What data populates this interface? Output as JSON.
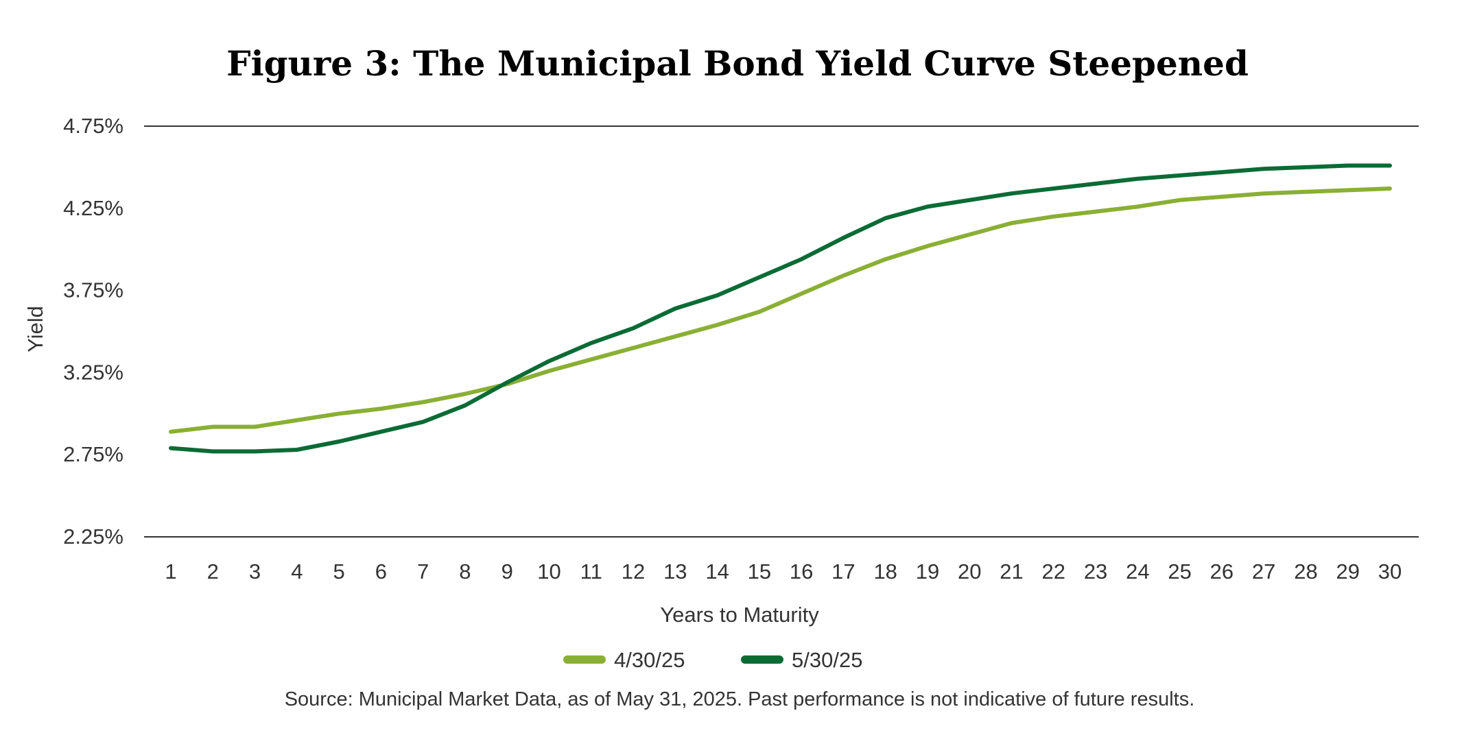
{
  "chart_data": {
    "type": "line",
    "title": "Figure 3: The Municipal Bond Yield Curve Steepened",
    "xlabel": "Years to Maturity",
    "ylabel": "Yield",
    "x": [
      1,
      2,
      3,
      4,
      5,
      6,
      7,
      8,
      9,
      10,
      11,
      12,
      13,
      14,
      15,
      16,
      17,
      18,
      19,
      20,
      21,
      22,
      23,
      24,
      25,
      26,
      27,
      28,
      29,
      30
    ],
    "x_tick_labels": [
      "1",
      "2",
      "3",
      "4",
      "5",
      "6",
      "7",
      "8",
      "9",
      "10",
      "11",
      "12",
      "13",
      "14",
      "15",
      "16",
      "17",
      "18",
      "19",
      "20",
      "21",
      "22",
      "23",
      "24",
      "25",
      "26",
      "27",
      "28",
      "29",
      "30"
    ],
    "y_ticks": [
      2.25,
      2.75,
      3.25,
      3.75,
      4.25,
      4.75
    ],
    "y_tick_labels": [
      "2.25%",
      "2.75%",
      "3.25%",
      "3.75%",
      "4.25%",
      "4.75%"
    ],
    "ylim": [
      2.25,
      4.75
    ],
    "grid": "horizontal lines at top and bottom only",
    "legend_position": "bottom-center",
    "series": [
      {
        "name": "4/30/25",
        "color": "#8AAF35",
        "values": [
          2.89,
          2.92,
          2.92,
          2.96,
          3.0,
          3.03,
          3.07,
          3.12,
          3.18,
          3.26,
          3.33,
          3.4,
          3.47,
          3.54,
          3.62,
          3.73,
          3.84,
          3.94,
          4.02,
          4.09,
          4.16,
          4.2,
          4.23,
          4.26,
          4.3,
          4.32,
          4.34,
          4.35,
          4.36,
          4.37
        ]
      },
      {
        "name": "5/30/25",
        "color": "#0B6B35",
        "values": [
          2.79,
          2.77,
          2.77,
          2.78,
          2.83,
          2.89,
          2.95,
          3.05,
          3.19,
          3.32,
          3.43,
          3.52,
          3.64,
          3.72,
          3.83,
          3.94,
          4.07,
          4.19,
          4.26,
          4.3,
          4.34,
          4.37,
          4.4,
          4.43,
          4.45,
          4.47,
          4.49,
          4.5,
          4.51,
          4.51
        ]
      }
    ],
    "source_note": "Source: Municipal Market Data, as of May 31, 2025. Past performance is not indicative of future results."
  },
  "colors": {
    "axis_line": "#333333",
    "text": "#333333",
    "title": "#000000"
  }
}
